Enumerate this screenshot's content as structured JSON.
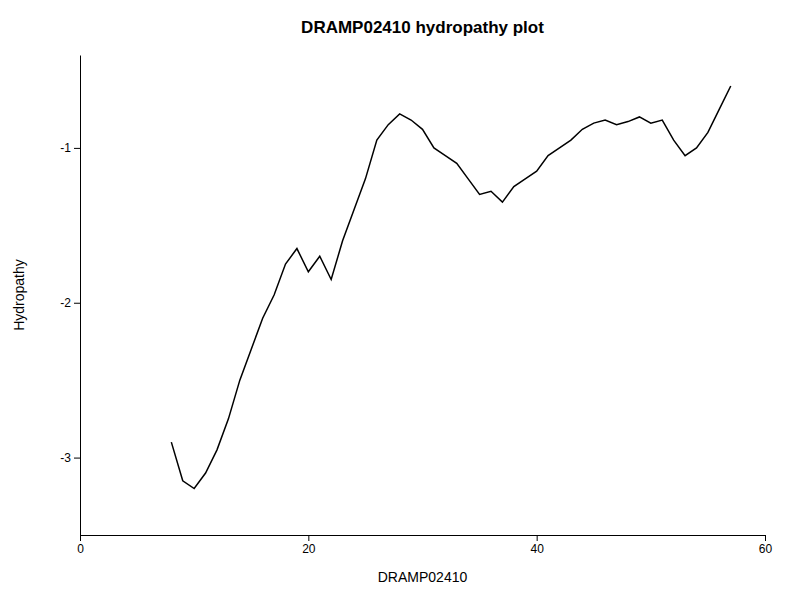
{
  "chart_data": {
    "type": "line",
    "title": "DRAMP02410 hydropathy plot",
    "xlabel": "DRAMP02410",
    "ylabel": "Hydropathy",
    "xlim": [
      0,
      60
    ],
    "ylim": [
      -3.5,
      -0.4
    ],
    "xticks": [
      0,
      20,
      40,
      60
    ],
    "yticks": [
      -3,
      -2,
      -1
    ],
    "color": "#000000",
    "x": [
      8,
      9,
      10,
      11,
      12,
      13,
      14,
      15,
      16,
      17,
      18,
      19,
      20,
      21,
      22,
      23,
      24,
      25,
      26,
      27,
      28,
      29,
      30,
      31,
      32,
      33,
      34,
      35,
      36,
      37,
      38,
      39,
      40,
      41,
      42,
      43,
      44,
      45,
      46,
      47,
      48,
      49,
      50,
      51,
      52,
      53,
      54,
      55,
      56,
      57
    ],
    "values": [
      -2.9,
      -3.15,
      -3.2,
      -3.1,
      -2.95,
      -2.75,
      -2.5,
      -2.3,
      -2.1,
      -1.95,
      -1.75,
      -1.65,
      -1.8,
      -1.7,
      -1.85,
      -1.6,
      -1.4,
      -1.2,
      -0.95,
      -0.85,
      -0.78,
      -0.82,
      -0.88,
      -1.0,
      -1.05,
      -1.1,
      -1.2,
      -1.3,
      -1.28,
      -1.35,
      -1.25,
      -1.2,
      -1.15,
      -1.05,
      -1.0,
      -0.95,
      -0.88,
      -0.84,
      -0.82,
      -0.85,
      -0.83,
      -0.8,
      -0.84,
      -0.82,
      -0.95,
      -1.05,
      -1.0,
      -0.9,
      -0.75,
      -0.6
    ]
  }
}
